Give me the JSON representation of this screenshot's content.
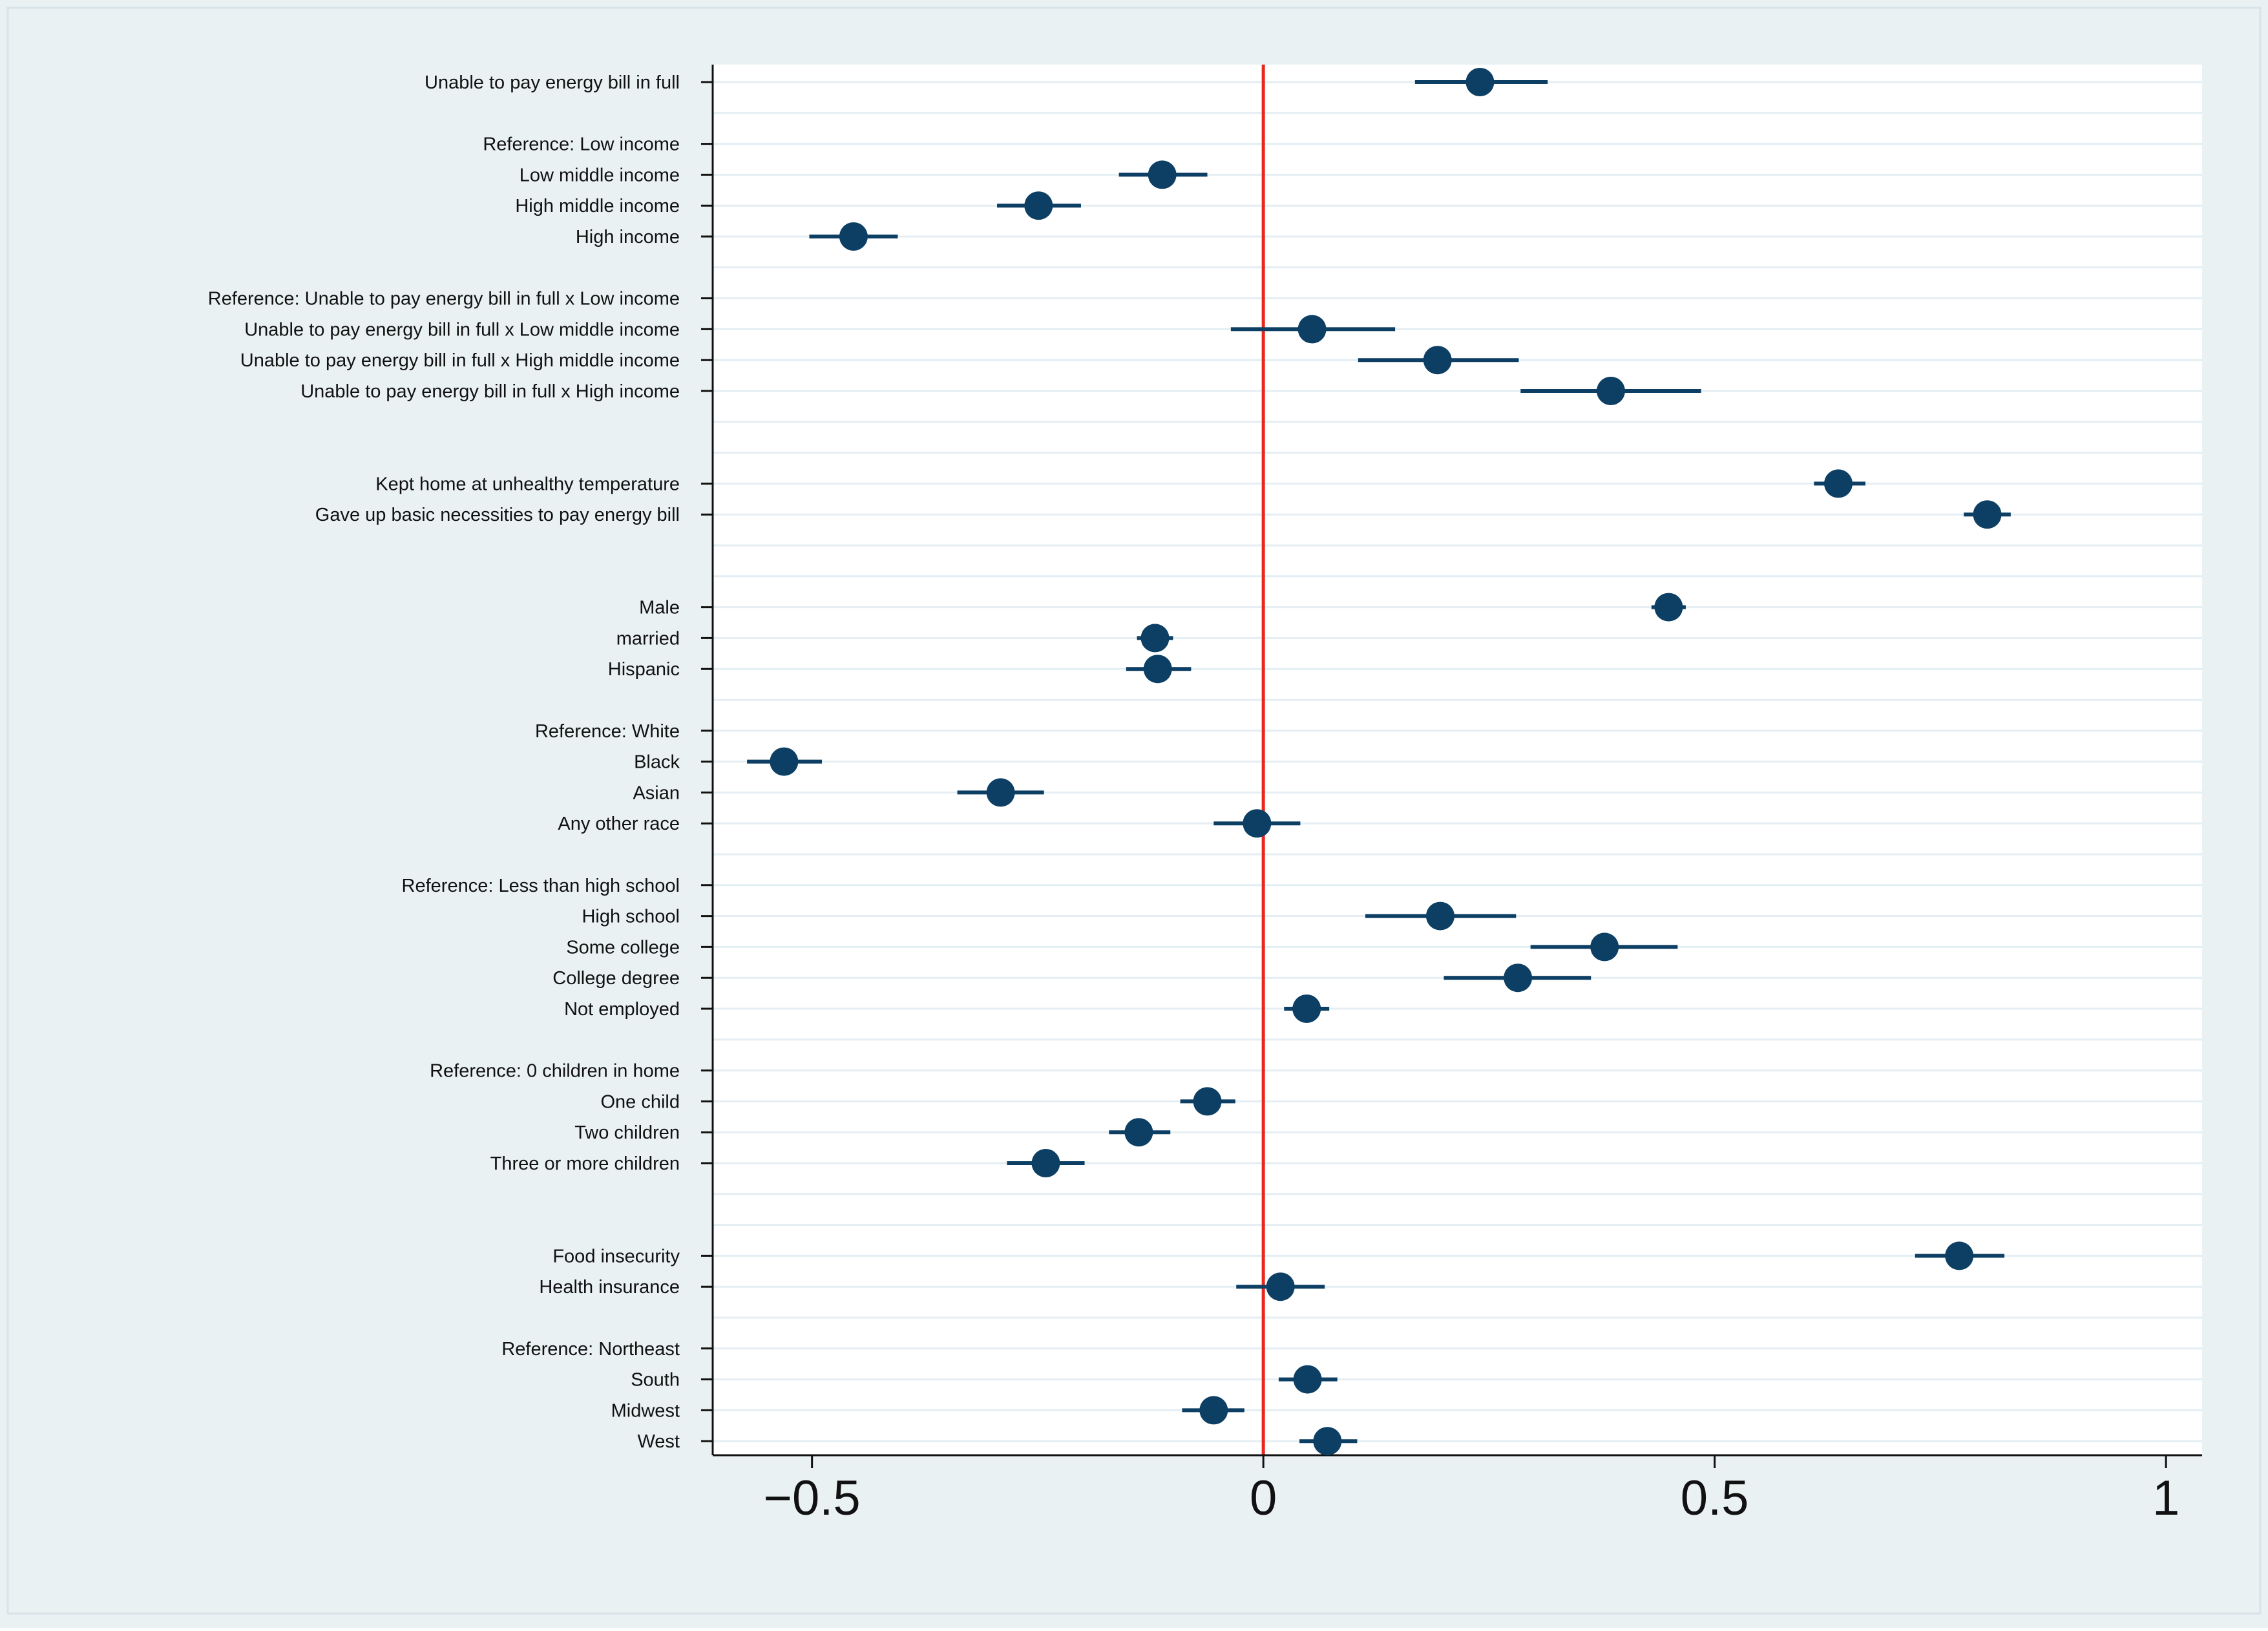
{
  "chart_data": {
    "type": "scatter",
    "subtype": "coefficient-plot",
    "title": "",
    "xlabel": "",
    "ylabel": "",
    "xlim": [
      -0.61,
      1.04
    ],
    "x_ticks": [
      -0.5,
      0,
      0.5,
      1
    ],
    "x_tick_labels": [
      "−0.5",
      "0",
      "0.5",
      "1"
    ],
    "reference_line": {
      "x": 0,
      "color": "#e8281e"
    },
    "colors": {
      "outer_bg": "#e9f1f3",
      "plot_bg": "#ffffff",
      "marker": "#0d3f64",
      "grid": "#e4eef3",
      "text": "#111111"
    },
    "rows": [
      {
        "label": "Unable to pay energy bill in full",
        "coef": 0.24,
        "lo": 0.168,
        "hi": 0.315
      },
      {
        "label": "",
        "coef": null
      },
      {
        "label": "Reference: Low income",
        "coef": null
      },
      {
        "label": "Low middle income",
        "coef": -0.112,
        "lo": -0.16,
        "hi": -0.062
      },
      {
        "label": "High middle income",
        "coef": -0.249,
        "lo": -0.295,
        "hi": -0.202
      },
      {
        "label": "High income",
        "coef": -0.454,
        "lo": -0.503,
        "hi": -0.405
      },
      {
        "label": "",
        "coef": null
      },
      {
        "label": "Reference: Unable to pay energy bill in full x Low income",
        "coef": null
      },
      {
        "label": "Unable to pay energy bill in full x Low middle income",
        "coef": 0.054,
        "lo": -0.036,
        "hi": 0.146
      },
      {
        "label": "Unable to pay energy bill in full x High middle income",
        "coef": 0.193,
        "lo": 0.105,
        "hi": 0.283
      },
      {
        "label": "Unable to pay energy bill in full x High income",
        "coef": 0.385,
        "lo": 0.285,
        "hi": 0.485
      },
      {
        "label": "",
        "coef": null
      },
      {
        "label": "",
        "coef": null
      },
      {
        "label": "Kept home at unhealthy temperature",
        "coef": 0.637,
        "lo": 0.61,
        "hi": 0.667
      },
      {
        "label": "Gave up basic necessities to pay energy bill",
        "coef": 0.802,
        "lo": 0.776,
        "hi": 0.828
      },
      {
        "label": "",
        "coef": null
      },
      {
        "label": "",
        "coef": null
      },
      {
        "label": "Male",
        "coef": 0.449,
        "lo": 0.43,
        "hi": 0.468
      },
      {
        "label": "married",
        "coef": -0.12,
        "lo": -0.14,
        "hi": -0.1
      },
      {
        "label": "Hispanic",
        "coef": -0.117,
        "lo": -0.152,
        "hi": -0.08
      },
      {
        "label": "",
        "coef": null
      },
      {
        "label": "Reference: White",
        "coef": null
      },
      {
        "label": "Black",
        "coef": -0.531,
        "lo": -0.572,
        "hi": -0.489
      },
      {
        "label": "Asian",
        "coef": -0.291,
        "lo": -0.339,
        "hi": -0.243
      },
      {
        "label": "Any other race",
        "coef": -0.007,
        "lo": -0.055,
        "hi": 0.041
      },
      {
        "label": "",
        "coef": null
      },
      {
        "label": "Reference: Less than high school",
        "coef": null
      },
      {
        "label": "High school",
        "coef": 0.196,
        "lo": 0.113,
        "hi": 0.28
      },
      {
        "label": "Some college",
        "coef": 0.378,
        "lo": 0.296,
        "hi": 0.459
      },
      {
        "label": "College degree",
        "coef": 0.282,
        "lo": 0.2,
        "hi": 0.363
      },
      {
        "label": "Not employed",
        "coef": 0.048,
        "lo": 0.023,
        "hi": 0.073
      },
      {
        "label": "",
        "coef": null
      },
      {
        "label": "Reference: 0 children in home",
        "coef": null
      },
      {
        "label": "One child",
        "coef": -0.062,
        "lo": -0.092,
        "hi": -0.031
      },
      {
        "label": "Two children",
        "coef": -0.138,
        "lo": -0.171,
        "hi": -0.103
      },
      {
        "label": "Three or more children",
        "coef": -0.241,
        "lo": -0.284,
        "hi": -0.198
      },
      {
        "label": "",
        "coef": null
      },
      {
        "label": "",
        "coef": null
      },
      {
        "label": "Food insecurity",
        "coef": 0.771,
        "lo": 0.722,
        "hi": 0.821
      },
      {
        "label": "Health insurance",
        "coef": 0.019,
        "lo": -0.03,
        "hi": 0.068
      },
      {
        "label": "",
        "coef": null
      },
      {
        "label": "Reference: Northeast",
        "coef": null
      },
      {
        "label": "South",
        "coef": 0.049,
        "lo": 0.017,
        "hi": 0.082
      },
      {
        "label": "Midwest",
        "coef": -0.055,
        "lo": -0.09,
        "hi": -0.021
      },
      {
        "label": "West",
        "coef": 0.071,
        "lo": 0.04,
        "hi": 0.104
      }
    ]
  }
}
